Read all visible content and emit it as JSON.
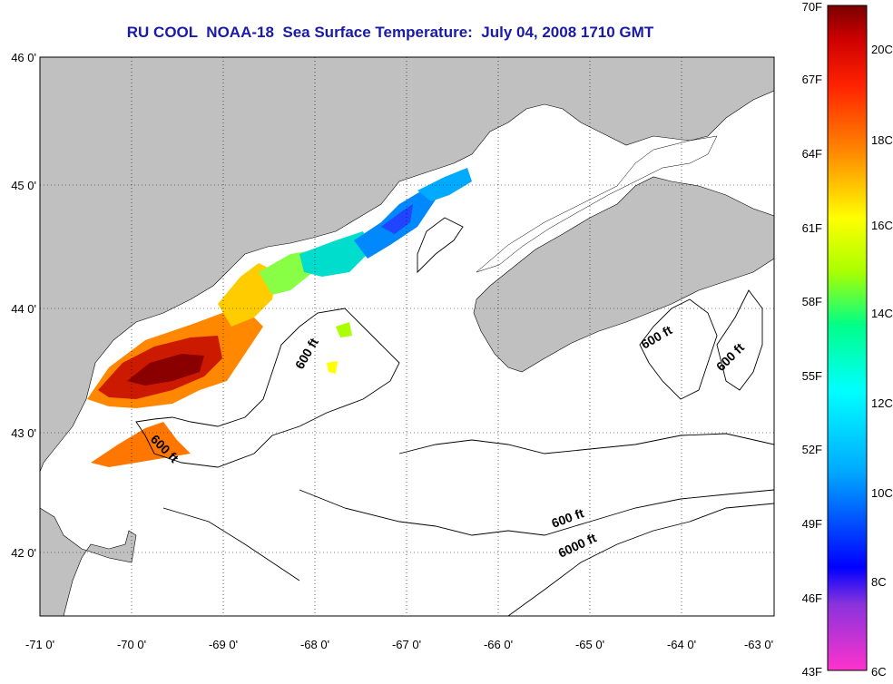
{
  "title": "RU COOL  NOAA-18  Sea Surface Temperature:  July 04, 2008 1710 GMT",
  "map": {
    "lon_ticks": [
      "-71 0'",
      "-70 0'",
      "-69 0'",
      "-68 0'",
      "-67 0'",
      "-66 0'",
      "-65 0'",
      "-64 0'",
      "-63 0'"
    ],
    "lat_ticks": [
      "46 0'",
      "45 0'",
      "44 0'",
      "43 0'",
      "42 0'"
    ],
    "lon_range": [
      -71,
      -63
    ],
    "lat_range": [
      41.5,
      46
    ],
    "contour_labels": [
      "600 ft",
      "600 ft",
      "600 ft",
      "600 ft",
      "600 ft",
      "6000 ft"
    ],
    "land_color": "#c0c0c0",
    "grid": "dotted"
  },
  "colorbar": {
    "fahrenheit": [
      "70F",
      "67F",
      "64F",
      "61F",
      "58F",
      "55F",
      "52F",
      "49F",
      "46F",
      "43F"
    ],
    "celsius": [
      "20C",
      "18C",
      "16C",
      "14C",
      "12C",
      "10C",
      "8C",
      "6C"
    ],
    "colors": [
      "#ff33cc",
      "#8833dd",
      "#0000ff",
      "#00aaff",
      "#00ffff",
      "#00ff88",
      "#aaff00",
      "#ffff00",
      "#ff8800",
      "#ff2200",
      "#cc0000",
      "#7a0000"
    ]
  }
}
